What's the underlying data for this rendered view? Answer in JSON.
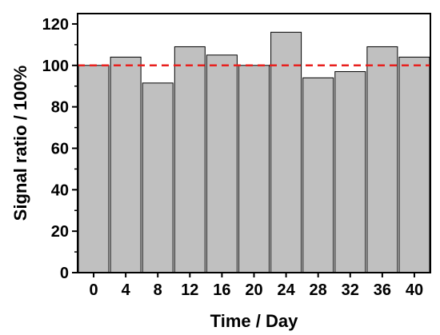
{
  "chart_data": {
    "type": "bar",
    "categories": [
      "0",
      "4",
      "8",
      "12",
      "16",
      "20",
      "24",
      "28",
      "32",
      "36",
      "40"
    ],
    "values": [
      100,
      104,
      91.5,
      109,
      105,
      100,
      116,
      94,
      97,
      109,
      104
    ],
    "xlabel": "Time / Day",
    "ylabel": "Signal ratio / 100%",
    "ylim": [
      0,
      125
    ],
    "yticks": [
      "0",
      "20",
      "40",
      "60",
      "80",
      "100",
      "120"
    ],
    "reference_line": {
      "value": 100,
      "style": "dashed",
      "color": "#e8201e"
    },
    "bar_fill": "#c0c0c0",
    "bar_stroke": "#000000",
    "grid": false,
    "legend": "none"
  }
}
